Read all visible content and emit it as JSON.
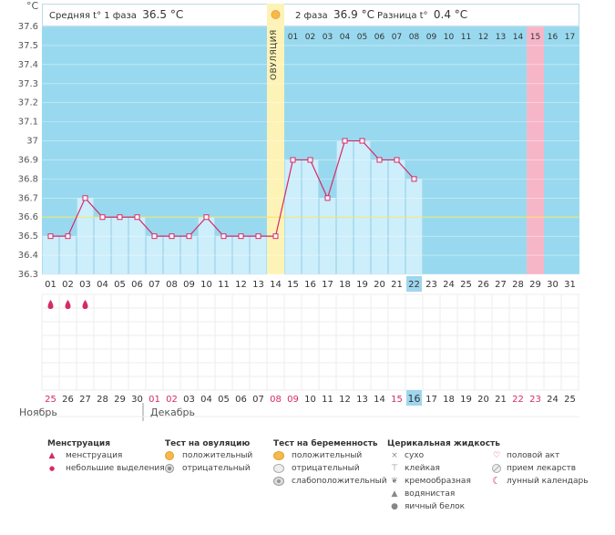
{
  "unit_label": "°C",
  "header": {
    "phase1_label": "Средняя t° 1 фаза",
    "phase1_value": "36.5 °C",
    "phase2_label": "2 фаза",
    "phase2_value": "36.9 °C",
    "diff_label": "Разница t°",
    "diff_value": "0.4 °C"
  },
  "ovulation_label": "ОВУЛЯЦИЯ",
  "colors": {
    "background": "#99d9ef",
    "bars": "#cdeefb",
    "line": "#d6296a",
    "ovulation": "#fef3b6",
    "highlight_day": "#f7b6c8",
    "coverline": "#f0e86a",
    "grid": "#ffffff"
  },
  "chart_data": {
    "type": "line",
    "ylim": [
      36.3,
      37.6
    ],
    "yticks": [
      "37.6",
      "37.5",
      "37.4",
      "37.3",
      "37.2",
      "37.1",
      "37",
      "36.9",
      "36.8",
      "36.7",
      "36.6",
      "36.5",
      "36.4",
      "36.3"
    ],
    "coverline": 36.6,
    "cycle_days": [
      "01",
      "02",
      "03",
      "04",
      "05",
      "06",
      "07",
      "08",
      "09",
      "10",
      "11",
      "12",
      "13",
      "14",
      "15",
      "16",
      "17",
      "18",
      "19",
      "20",
      "21",
      "22",
      "23",
      "24",
      "25",
      "26",
      "27",
      "28",
      "29",
      "30",
      "31"
    ],
    "dates": [
      "25",
      "26",
      "27",
      "28",
      "29",
      "30",
      "01",
      "02",
      "03",
      "04",
      "05",
      "06",
      "07",
      "08",
      "09",
      "10",
      "11",
      "12",
      "13",
      "14",
      "15",
      "16",
      "17",
      "18",
      "19",
      "20",
      "21",
      "22",
      "23",
      "24",
      "25"
    ],
    "date_colors": [
      "red",
      "normal",
      "normal",
      "normal",
      "normal",
      "normal",
      "red",
      "red",
      "normal",
      "normal",
      "normal",
      "normal",
      "normal",
      "red",
      "red",
      "normal",
      "normal",
      "normal",
      "normal",
      "normal",
      "red",
      "today",
      "normal",
      "normal",
      "normal",
      "normal",
      "normal",
      "red",
      "red",
      "normal",
      "normal"
    ],
    "temperatures": [
      36.5,
      36.5,
      36.7,
      36.6,
      36.6,
      36.6,
      36.5,
      36.5,
      36.5,
      36.6,
      36.5,
      36.5,
      36.5,
      36.5,
      36.9,
      36.9,
      36.7,
      37.0,
      37.0,
      36.9,
      36.9,
      36.8
    ],
    "ovulation_day_index": 13,
    "phase2_labels": [
      "01",
      "02",
      "03",
      "04",
      "05",
      "06",
      "07",
      "08",
      "09",
      "10",
      "11",
      "12",
      "13",
      "14",
      "15",
      "16",
      "17"
    ],
    "highlight_phase2_index": 14,
    "today_index": 21,
    "menstruation_days": [
      0,
      1,
      2
    ]
  },
  "months": {
    "first": "Ноябрь",
    "second": "Декабрь"
  },
  "legend": {
    "col1": {
      "title": "Менструация",
      "items": [
        "менструация",
        "небольшие выделения"
      ]
    },
    "col2": {
      "title": "Тест на овуляцию",
      "items": [
        "положительный",
        "отрицательный"
      ]
    },
    "col3": {
      "title": "Тест на беременность",
      "items": [
        "положительный",
        "отрицательный",
        "слабоположительный"
      ]
    },
    "col4": {
      "title": "Церикальная жидкость",
      "items": [
        "сухо",
        "клейкая",
        "кремообразная",
        "водянистая",
        "яичный белок"
      ]
    },
    "col5": {
      "items": [
        "половой акт",
        "прием лекарств",
        "лунный календарь"
      ]
    }
  }
}
